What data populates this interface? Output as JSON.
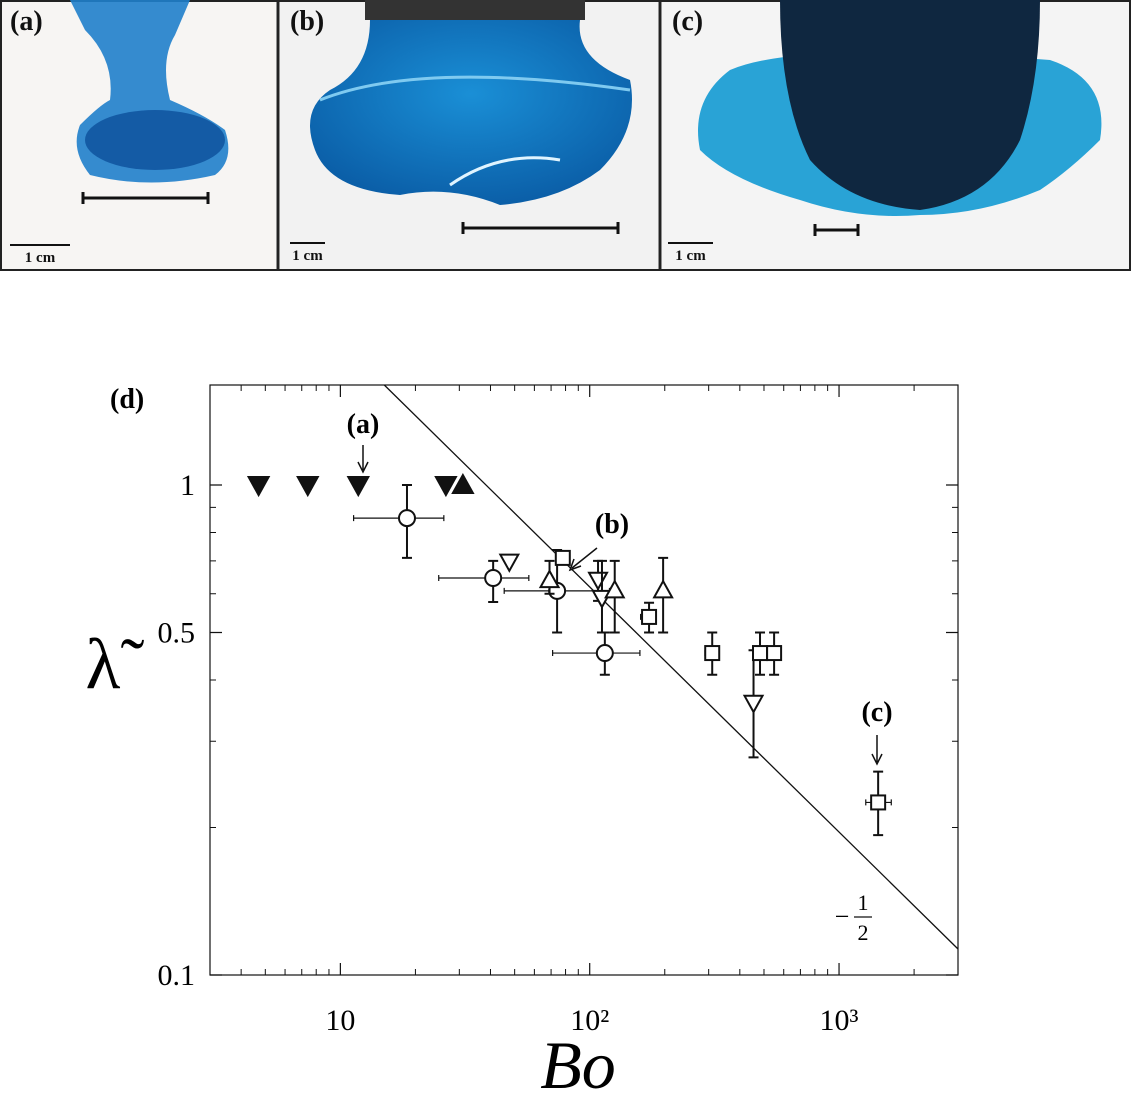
{
  "panels": [
    {
      "label": "(a)",
      "scale_label": "1 cm"
    },
    {
      "label": "(b)",
      "scale_label": "1 cm"
    },
    {
      "label": "(c)",
      "scale_label": "1 cm"
    }
  ],
  "chart_data": {
    "type": "scatter",
    "title": "(d)",
    "x_label": "Bo",
    "y_label": "λ̃",
    "log_x": true,
    "log_y": true,
    "xlim": [
      3,
      3000
    ],
    "ylim": [
      0.1,
      1.6
    ],
    "xticks": [
      10,
      {
        "value": 100,
        "label": "10²"
      },
      {
        "value": 1000,
        "label": "10³"
      }
    ],
    "x_minor_ticks": [
      4,
      5,
      6,
      7,
      8,
      9,
      20,
      30,
      40,
      50,
      60,
      70,
      80,
      90,
      200,
      300,
      400,
      500,
      600,
      700,
      800,
      900,
      2000,
      3000
    ],
    "yticks": [
      0.1,
      0.5,
      1
    ],
    "y_minor_ticks": [
      0.2,
      0.3,
      0.4,
      0.6,
      0.7,
      0.8,
      0.9
    ],
    "series": [
      {
        "marker": "triangle-down",
        "filled": true,
        "x": [
          4.7,
          7.4,
          11.8,
          26.5
        ],
        "values": [
          1,
          1,
          1,
          1
        ]
      },
      {
        "marker": "triangle-up",
        "filled": true,
        "x": [
          31
        ],
        "values": [
          1
        ]
      },
      {
        "marker": "circle",
        "filled": false,
        "x": [
          18.5,
          41,
          74,
          115
        ],
        "values": [
          0.856,
          0.646,
          0.608,
          0.454
        ],
        "y_low": [
          0.71,
          0.577,
          0.5,
          0.41
        ],
        "y_high": [
          1.0,
          0.7,
          0.737,
          0.5
        ],
        "x_low": [
          11.3,
          24.8,
          45.4,
          71
        ],
        "x_high": [
          26,
          57,
          120,
          159
        ]
      },
      {
        "marker": "triangle-down",
        "filled": false,
        "x": [
          47.6,
          108,
          112,
          454
        ],
        "values": [
          0.697,
          0.64,
          0.588,
          0.359
        ],
        "y_low": [
          null,
          0.58,
          0.5,
          0.278
        ],
        "y_high": [
          null,
          0.7,
          0.7,
          0.46
        ]
      },
      {
        "marker": "triangle-up",
        "filled": false,
        "x": [
          69,
          126,
          197
        ],
        "values": [
          0.64,
          0.61,
          0.61
        ],
        "y_low": [
          0.6,
          0.5,
          0.5
        ],
        "y_high": [
          0.7,
          0.7,
          0.71
        ]
      },
      {
        "marker": "square",
        "filled": false,
        "x": [
          78,
          173,
          310,
          482,
          549,
          1435
        ],
        "values": [
          0.71,
          0.538,
          0.454,
          0.454,
          0.454,
          0.225
        ],
        "y_low": [
          null,
          0.5,
          0.41,
          0.41,
          0.41,
          0.193
        ],
        "y_high": [
          null,
          0.575,
          0.5,
          0.5,
          0.5,
          0.26
        ],
        "x_low": [
          null,
          160,
          290,
          460,
          525,
          1280
        ],
        "x_high": [
          null,
          185,
          330,
          505,
          575,
          1620
        ]
      }
    ],
    "fit_line": {
      "x": [
        15,
        3000
      ],
      "values": [
        1.6,
        0.113
      ],
      "sign": "−",
      "numerator": "1",
      "denominator": "2"
    },
    "annotations": [
      {
        "text": "(a)"
      },
      {
        "text": "(b)"
      },
      {
        "text": "(c)"
      }
    ]
  }
}
